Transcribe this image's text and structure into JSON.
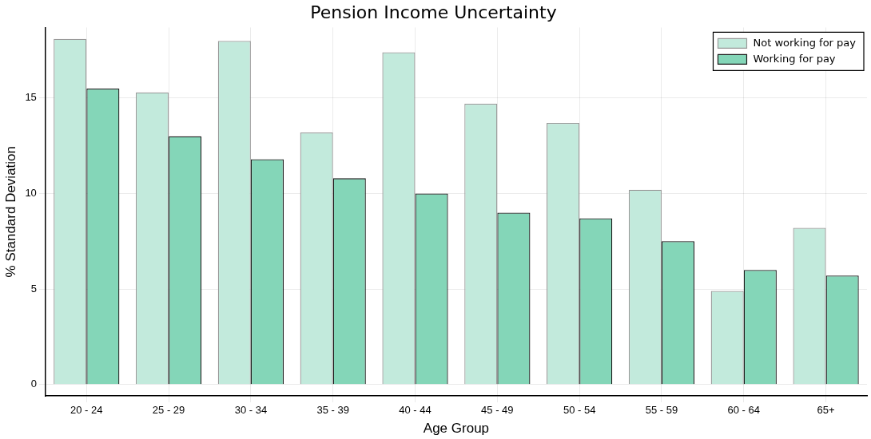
{
  "chart_data": {
    "type": "bar",
    "title": "Pension Income Uncertainty",
    "xlabel": "Age Group",
    "ylabel": "% Standard Deviation",
    "categories": [
      "20 - 24",
      "25 - 29",
      "30 - 34",
      "35 - 39",
      "40 - 44",
      "45 - 49",
      "50 - 54",
      "55 - 59",
      "60 - 64",
      "65+"
    ],
    "series": [
      {
        "name": "Not working for pay",
        "color": "#c2eadc",
        "values": [
          18.1,
          15.3,
          18.0,
          13.2,
          17.4,
          14.7,
          13.7,
          10.2,
          4.9,
          8.2
        ]
      },
      {
        "name": "Working for pay",
        "color": "#84d6b8",
        "values": [
          15.5,
          13.0,
          11.8,
          10.8,
          10.0,
          9.0,
          8.7,
          7.5,
          6.0,
          5.7
        ]
      }
    ],
    "ylim": [
      -0.6,
      18.7
    ],
    "yticks": [
      0,
      5,
      10,
      15
    ],
    "grid": true,
    "legend": "top right"
  }
}
